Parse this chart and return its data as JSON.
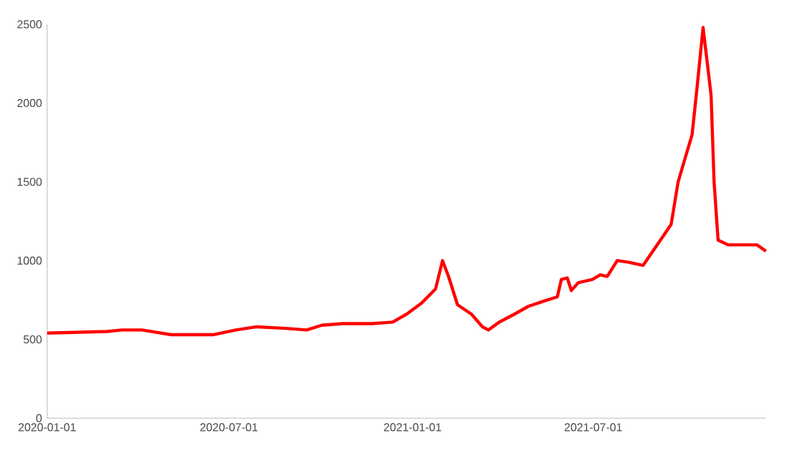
{
  "chart_data": {
    "type": "line",
    "x": [
      "2020-01-01",
      "2020-03-01",
      "2020-03-16",
      "2020-04-05",
      "2020-05-04",
      "2020-06-16",
      "2020-07-08",
      "2020-07-29",
      "2020-08-27",
      "2020-09-17",
      "2020-10-02",
      "2020-10-23",
      "2020-11-21",
      "2020-12-12",
      "2020-12-26",
      "2021-01-10",
      "2021-01-24",
      "2021-01-31",
      "2021-02-06",
      "2021-02-15",
      "2021-03-01",
      "2021-03-12",
      "2021-03-18",
      "2021-03-29",
      "2021-04-13",
      "2021-04-27",
      "2021-05-11",
      "2021-05-26",
      "2021-05-30",
      "2021-06-05",
      "2021-06-09",
      "2021-06-16",
      "2021-06-30",
      "2021-07-08",
      "2021-07-15",
      "2021-07-25",
      "2021-08-05",
      "2021-08-20",
      "2021-09-03",
      "2021-09-17",
      "2021-09-24",
      "2021-10-01",
      "2021-10-08",
      "2021-10-13",
      "2021-10-19",
      "2021-10-27",
      "2021-10-30",
      "2021-11-03",
      "2021-11-13",
      "2021-12-12",
      "2021-12-21"
    ],
    "series": [
      {
        "color": "#ff0000",
        "values": [
          540,
          550,
          560,
          560,
          530,
          530,
          560,
          580,
          570,
          560,
          590,
          600,
          600,
          610,
          660,
          730,
          820,
          1000,
          900,
          720,
          660,
          580,
          560,
          610,
          660,
          710,
          740,
          770,
          880,
          890,
          810,
          860,
          880,
          910,
          900,
          1000,
          990,
          970,
          1100,
          1230,
          1500,
          1650,
          1800,
          2100,
          2480,
          2050,
          1500,
          1130,
          1100,
          1100,
          1060
        ]
      }
    ],
    "xlim": [
      "2020-01-01",
      "2021-12-21"
    ],
    "xticks": [
      {
        "value": "2020-01-01",
        "label": "2020-01-01"
      },
      {
        "value": "2020-07-01",
        "label": "2020-07-01"
      },
      {
        "value": "2021-01-01",
        "label": "2021-01-01"
      },
      {
        "value": "2021-07-01",
        "label": "2021-07-01"
      }
    ],
    "ylim": [
      0,
      2500
    ],
    "yticks": [
      0,
      500,
      1000,
      1500,
      2000,
      2500
    ],
    "grid": false,
    "legend": false,
    "marker": "none",
    "line_style": "solid"
  }
}
